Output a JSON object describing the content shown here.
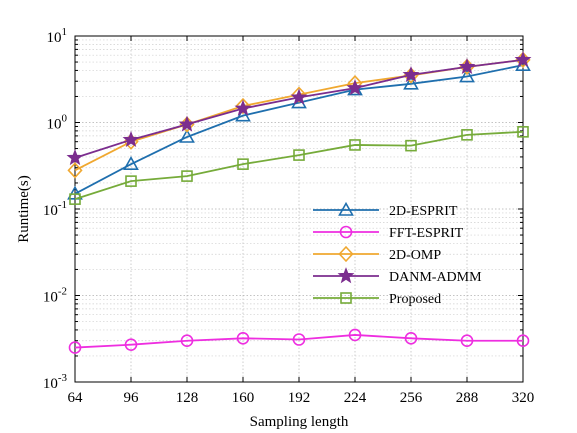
{
  "chart_data": {
    "type": "line",
    "xlabel": "Sampling length",
    "ylabel": "Runtime(s)",
    "x": [
      64,
      96,
      128,
      160,
      192,
      224,
      256,
      288,
      320
    ],
    "xlim": [
      64,
      320
    ],
    "ylim": [
      0.001,
      10
    ],
    "yscale": "log",
    "grid": true,
    "legend_position": "center-right",
    "x_tick_labels": [
      "64",
      "96",
      "128",
      "160",
      "192",
      "224",
      "256",
      "288",
      "320"
    ],
    "y_ticks": [
      {
        "value": 0.001,
        "base": "10",
        "exp": "-3"
      },
      {
        "value": 0.01,
        "base": "10",
        "exp": "-2"
      },
      {
        "value": 0.1,
        "base": "10",
        "exp": "-1"
      },
      {
        "value": 1,
        "base": "10",
        "exp": "0"
      },
      {
        "value": 10,
        "base": "10",
        "exp": "1"
      }
    ],
    "series": [
      {
        "name": "2D-ESPRIT",
        "color": "#1f6fae",
        "marker": "triangle",
        "values": [
          0.15,
          0.33,
          0.68,
          1.2,
          1.7,
          2.4,
          2.8,
          3.4,
          4.6
        ]
      },
      {
        "name": "FFT-ESPRIT",
        "color": "#ee2ee0",
        "marker": "circle",
        "values": [
          0.0025,
          0.0027,
          0.003,
          0.0032,
          0.0031,
          0.0035,
          0.0032,
          0.003,
          0.003
        ]
      },
      {
        "name": "2D-OMP",
        "color": "#f0a830",
        "marker": "diamond",
        "values": [
          0.28,
          0.6,
          0.95,
          1.55,
          2.1,
          2.85,
          3.5,
          4.4,
          5.3
        ]
      },
      {
        "name": "DANM-ADMM",
        "color": "#7b2d8e",
        "marker": "star",
        "values": [
          0.39,
          0.63,
          0.95,
          1.45,
          1.95,
          2.5,
          3.55,
          4.4,
          5.3
        ]
      },
      {
        "name": "Proposed",
        "color": "#76ab3a",
        "marker": "square",
        "values": [
          0.13,
          0.21,
          0.24,
          0.33,
          0.42,
          0.55,
          0.54,
          0.72,
          0.78
        ]
      }
    ]
  }
}
